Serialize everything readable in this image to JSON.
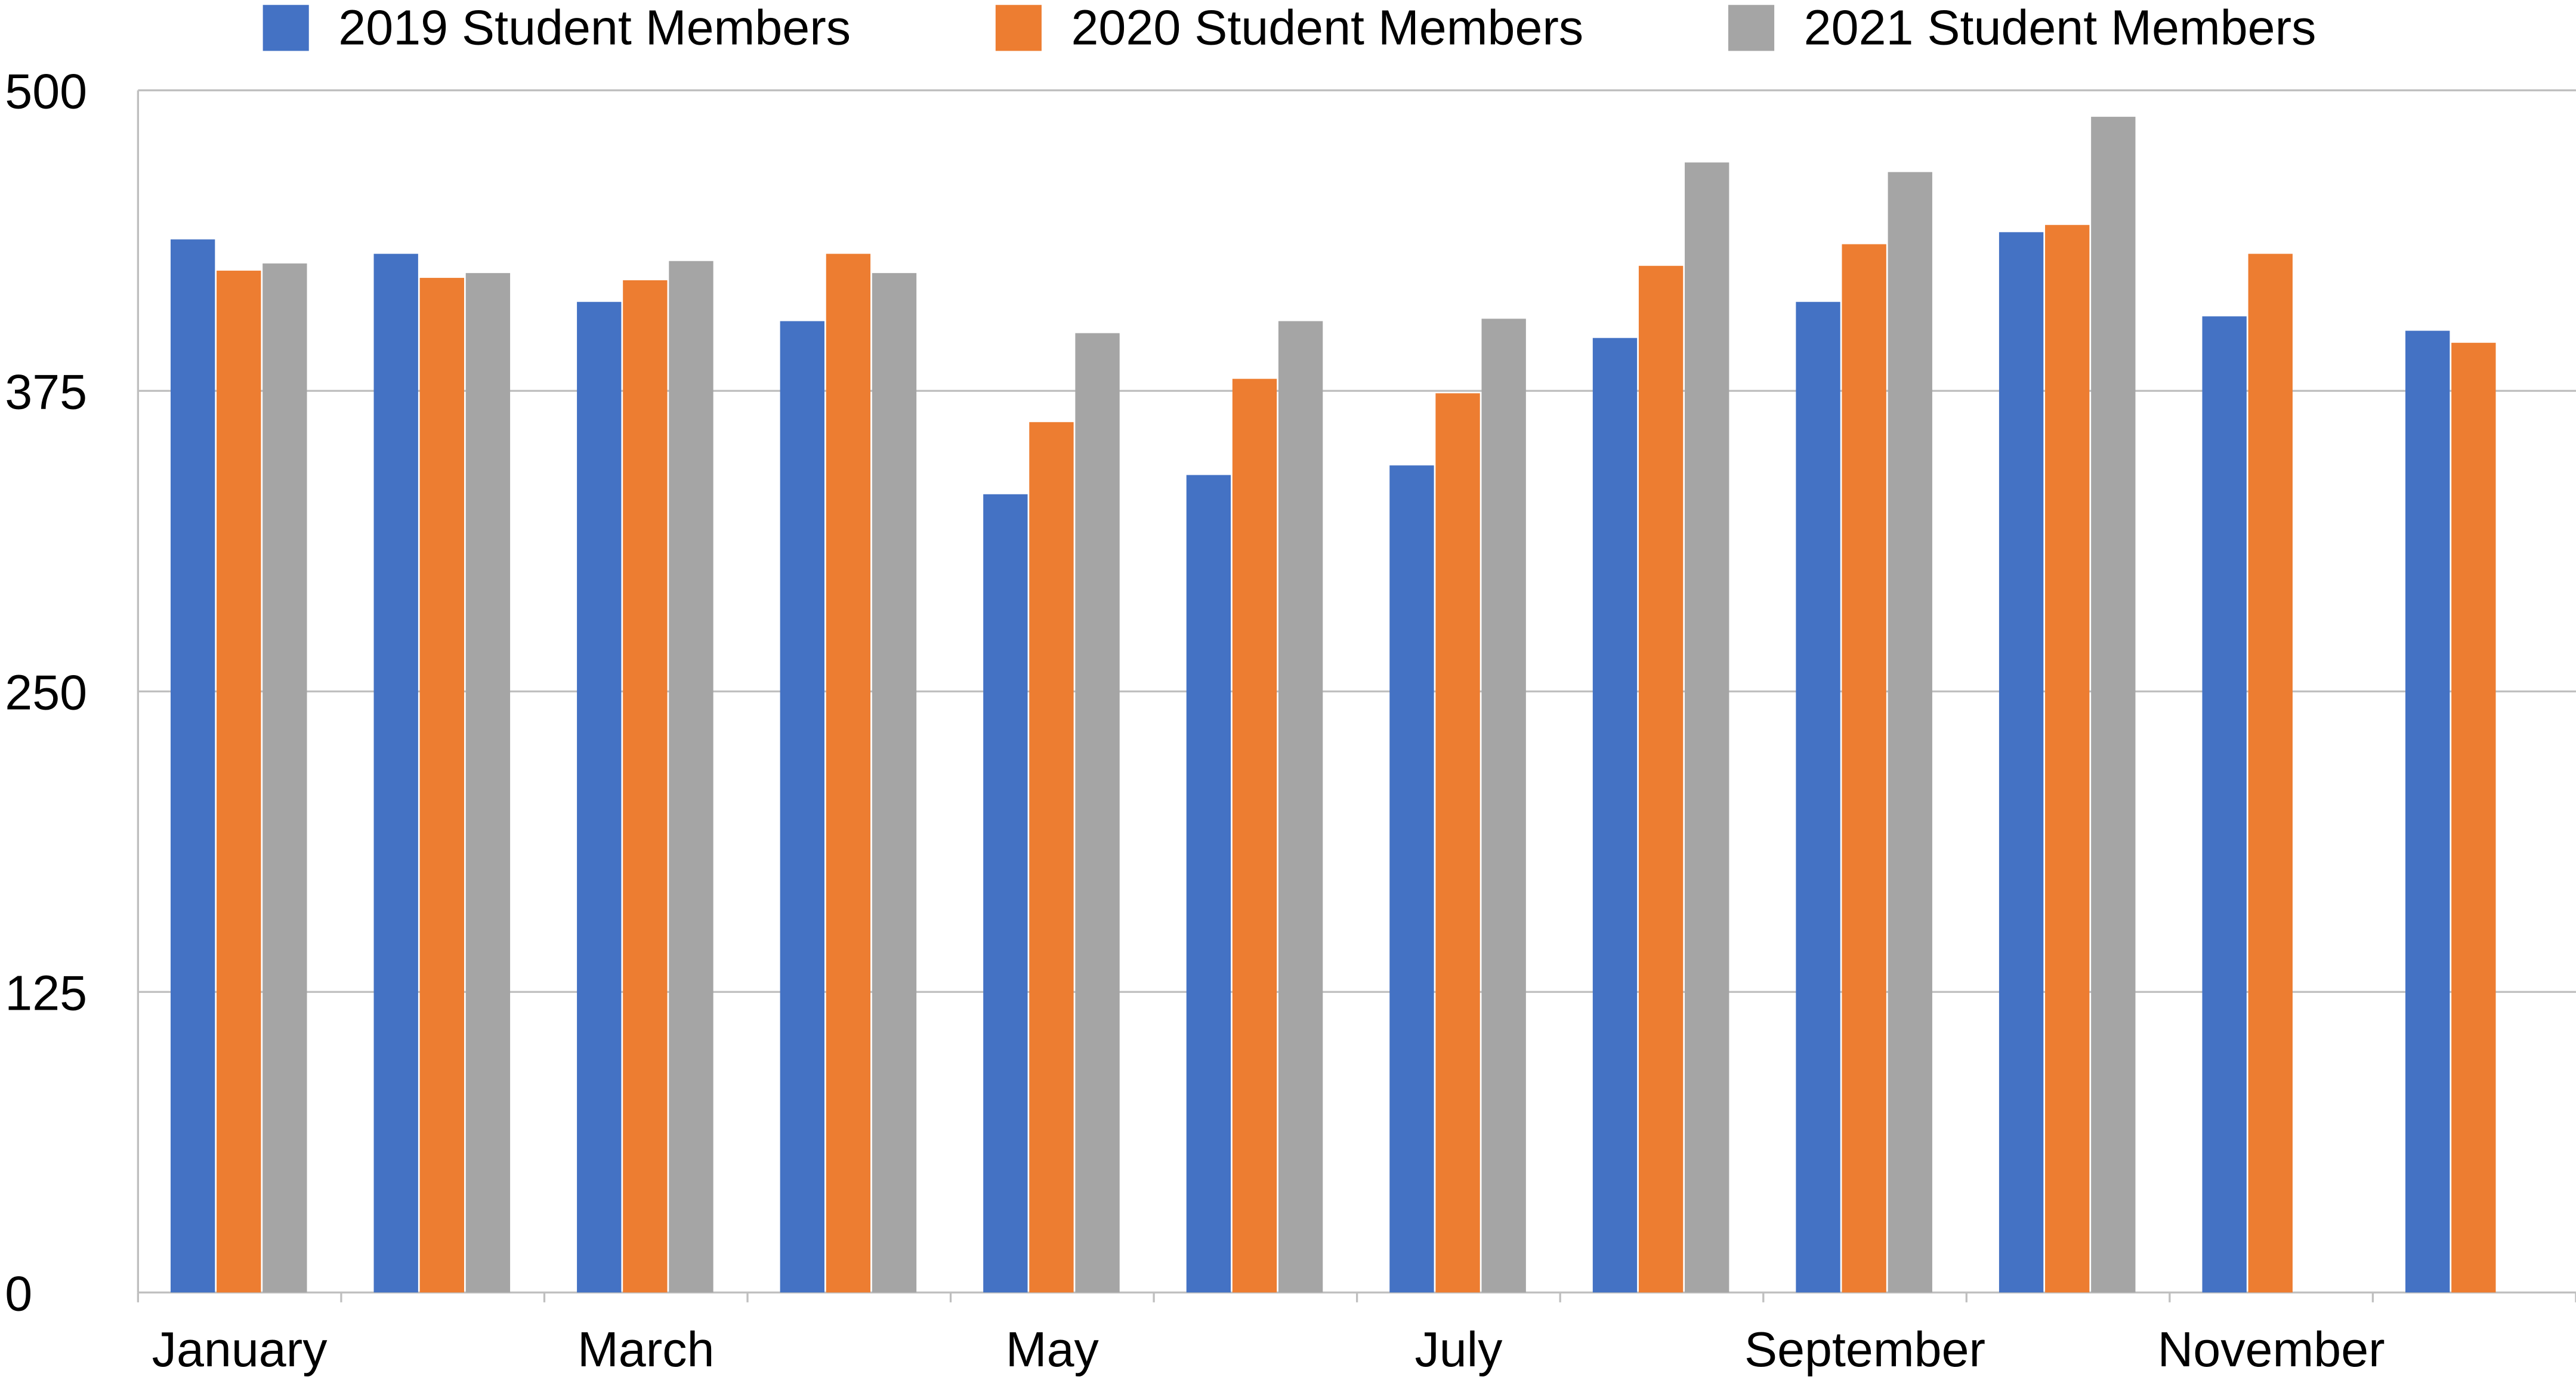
{
  "chart_data": {
    "type": "bar",
    "categories": [
      "January",
      null,
      "March",
      null,
      "May",
      null,
      "July",
      null,
      "September",
      null,
      "November",
      null
    ],
    "series": [
      {
        "name": "2019 Student Members",
        "color": "#4472c4",
        "values": [
          438,
          432,
          412,
          404,
          332,
          340,
          344,
          397,
          412,
          441,
          406,
          400
        ]
      },
      {
        "name": "2020 Student Members",
        "color": "#ed7d31",
        "values": [
          425,
          422,
          421,
          432,
          362,
          380,
          374,
          427,
          436,
          444,
          432,
          395
        ]
      },
      {
        "name": "2021 Student Members",
        "color": "#a5a5a5",
        "values": [
          428,
          424,
          429,
          424,
          399,
          404,
          405,
          470,
          466,
          489,
          null,
          null
        ]
      }
    ],
    "ylim": [
      0,
      500
    ],
    "yticks": [
      0,
      125,
      250,
      375,
      500
    ],
    "grid": true,
    "legend": "top"
  }
}
